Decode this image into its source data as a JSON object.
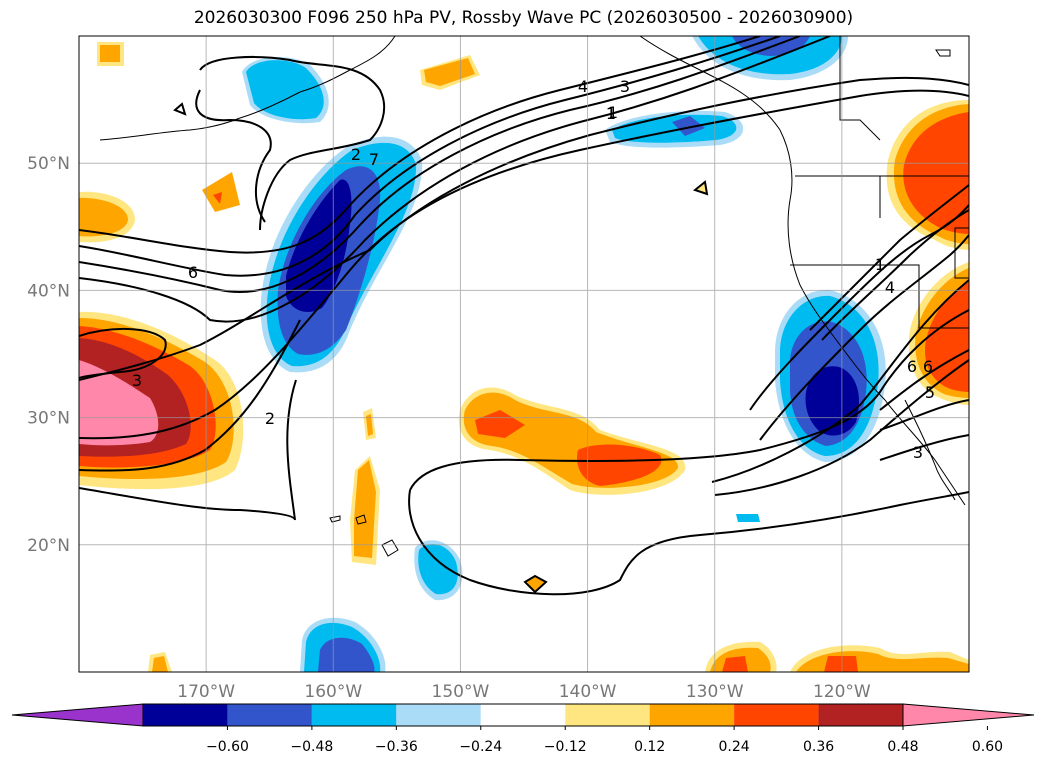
{
  "title": "2026030300 F096 250 hPa PV, Rossby Wave PC (2026030500 - 2026030900)",
  "map": {
    "lon_range": [
      -180,
      -110
    ],
    "lat_range": [
      10,
      60
    ],
    "lon_ticks": [
      {
        "lon": -170,
        "label": "170°W"
      },
      {
        "lon": -160,
        "label": "160°W"
      },
      {
        "lon": -150,
        "label": "150°W"
      },
      {
        "lon": -140,
        "label": "140°W"
      },
      {
        "lon": -130,
        "label": "130°W"
      },
      {
        "lon": -120,
        "label": "120°W"
      }
    ],
    "lat_ticks": [
      {
        "lat": 20,
        "label": "20°N"
      },
      {
        "lat": 30,
        "label": "30°N"
      },
      {
        "lat": 40,
        "label": "40°N"
      },
      {
        "lat": 50,
        "label": "50°N"
      }
    ],
    "contour_labels": [
      "6",
      "3",
      "2",
      "1",
      "4",
      "3",
      "1",
      "6",
      "7",
      "4",
      "6",
      "5",
      "3",
      "1",
      "2"
    ]
  },
  "colorbar": {
    "ticks": [
      "−0.60",
      "−0.48",
      "−0.36",
      "−0.24",
      "−0.12",
      "0.12",
      "0.24",
      "0.36",
      "0.48",
      "0.60"
    ],
    "colors": [
      "#9933cc",
      "#000099",
      "#3355cc",
      "#00bbf0",
      "#aadcf8",
      "#ffffff",
      "#ffe680",
      "#ffa500",
      "#ff4500",
      "#b22222",
      "#ff88aa"
    ]
  },
  "shading_colors": {
    "neg1": "#aadcf8",
    "neg2": "#00bbf0",
    "neg3": "#3355cc",
    "neg4": "#000099",
    "pos1": "#ffe680",
    "pos2": "#ffa500",
    "pos3": "#ff4500",
    "pos4": "#b22222",
    "pos5": "#ff88aa"
  }
}
